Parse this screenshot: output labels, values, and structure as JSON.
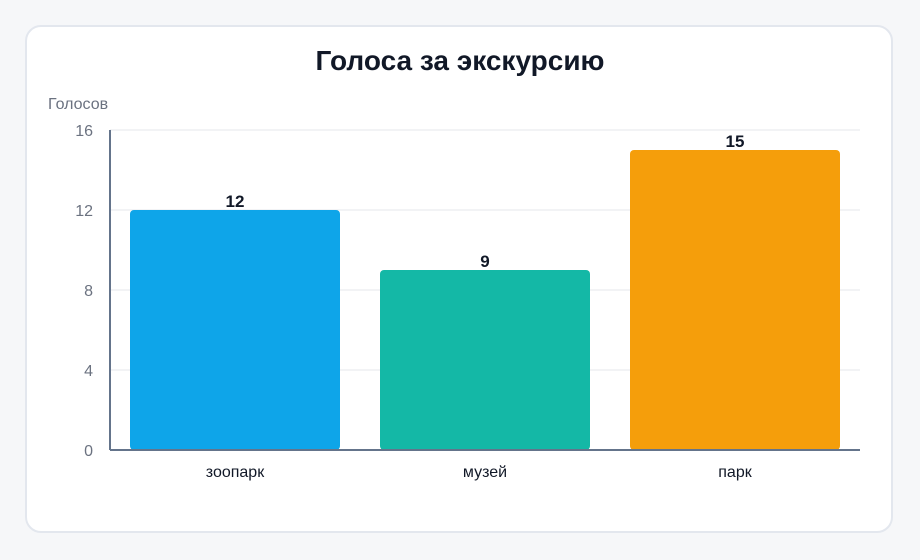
{
  "chart_data": {
    "type": "bar",
    "title": "Голоса за экскурсию",
    "ylabel": "Голосов",
    "xlabel": "",
    "categories": [
      "зоопарк",
      "музей",
      "парк"
    ],
    "values": [
      12,
      9,
      15
    ],
    "colors": [
      "#0ea5e9",
      "#14b8a6",
      "#f59e0b"
    ],
    "ylim": [
      0,
      16
    ],
    "yticks": [
      0,
      4,
      8,
      12,
      16
    ],
    "grid": true,
    "legend": "none"
  }
}
